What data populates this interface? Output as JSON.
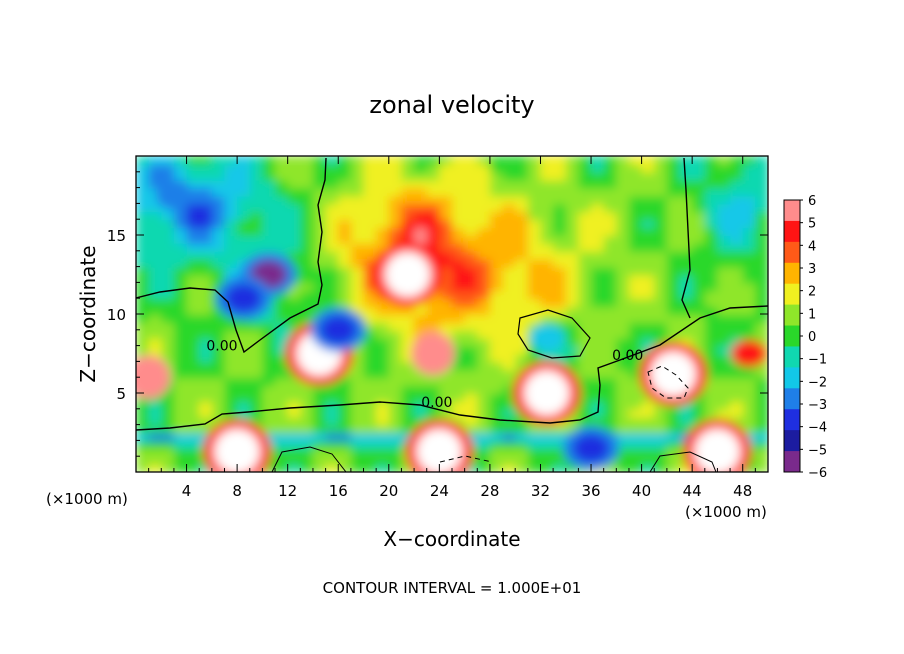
{
  "title": "zonal velocity",
  "footer": "CONTOUR INTERVAL = 1.000E+01",
  "chart_data": {
    "type": "heatmap",
    "title": "zonal velocity",
    "xlabel": "X−coordinate",
    "ylabel": "Z−coordinate",
    "x_unit_label": "(×1000 m)",
    "z_unit_label": "(×1000 m)",
    "xlim": [
      0,
      50
    ],
    "ylim": [
      0,
      20
    ],
    "x_ticks": [
      4,
      8,
      12,
      16,
      20,
      24,
      28,
      32,
      36,
      40,
      44,
      48
    ],
    "y_ticks": [
      5,
      10,
      15
    ],
    "colorbar": {
      "range": [
        -6,
        6
      ],
      "tick_labels": [
        "6",
        "5",
        "4",
        "3",
        "2",
        "1",
        "0",
        "−1",
        "−2",
        "−3",
        "−4",
        "−5",
        "−6"
      ],
      "tick_values": [
        6,
        5,
        4,
        3,
        2,
        1,
        0,
        -1,
        -2,
        -3,
        -4,
        -5,
        -6
      ],
      "colors": [
        "#7a2a8c",
        "#1c1ca0",
        "#1f2fe0",
        "#1f7fe8",
        "#12c8e8",
        "#10d8b0",
        "#2ad82a",
        "#8fe62a",
        "#f0f020",
        "#ffb400",
        "#ff5a18",
        "#ff1414",
        "#ff8c8c"
      ]
    },
    "contour_labels": [
      {
        "text": "0.00",
        "x": 6.8,
        "z": 7.7
      },
      {
        "text": "0.00",
        "x": 23.8,
        "z": 4.1
      },
      {
        "text": "0.00",
        "x": 38.9,
        "z": 7.1
      }
    ],
    "approx_features": [
      {
        "x": 21.5,
        "z": 12.5,
        "value": 7
      },
      {
        "x": 14.5,
        "z": 7.5,
        "value": 7
      },
      {
        "x": 42.5,
        "z": 6.2,
        "value": 7
      },
      {
        "x": 23.5,
        "z": 7.5,
        "value": 6
      },
      {
        "x": 32.5,
        "z": 5.0,
        "value": 7
      },
      {
        "x": 1.0,
        "z": 6.0,
        "value": 6
      },
      {
        "x": 48.5,
        "z": 7.5,
        "value": 5
      },
      {
        "x": 8.0,
        "z": 1.3,
        "value": 7
      },
      {
        "x": 24.0,
        "z": 1.3,
        "value": 7
      },
      {
        "x": 46.0,
        "z": 1.3,
        "value": 7
      },
      {
        "x": 10.5,
        "z": 12.5,
        "value": -6
      },
      {
        "x": 8.5,
        "z": 11.0,
        "value": -4
      },
      {
        "x": 16.0,
        "z": 9.0,
        "value": -4
      },
      {
        "x": 3.0,
        "z": 17.5,
        "value": -3
      },
      {
        "x": 32.5,
        "z": 8.5,
        "value": -2
      },
      {
        "x": 36.0,
        "z": 1.5,
        "value": -4
      }
    ]
  }
}
